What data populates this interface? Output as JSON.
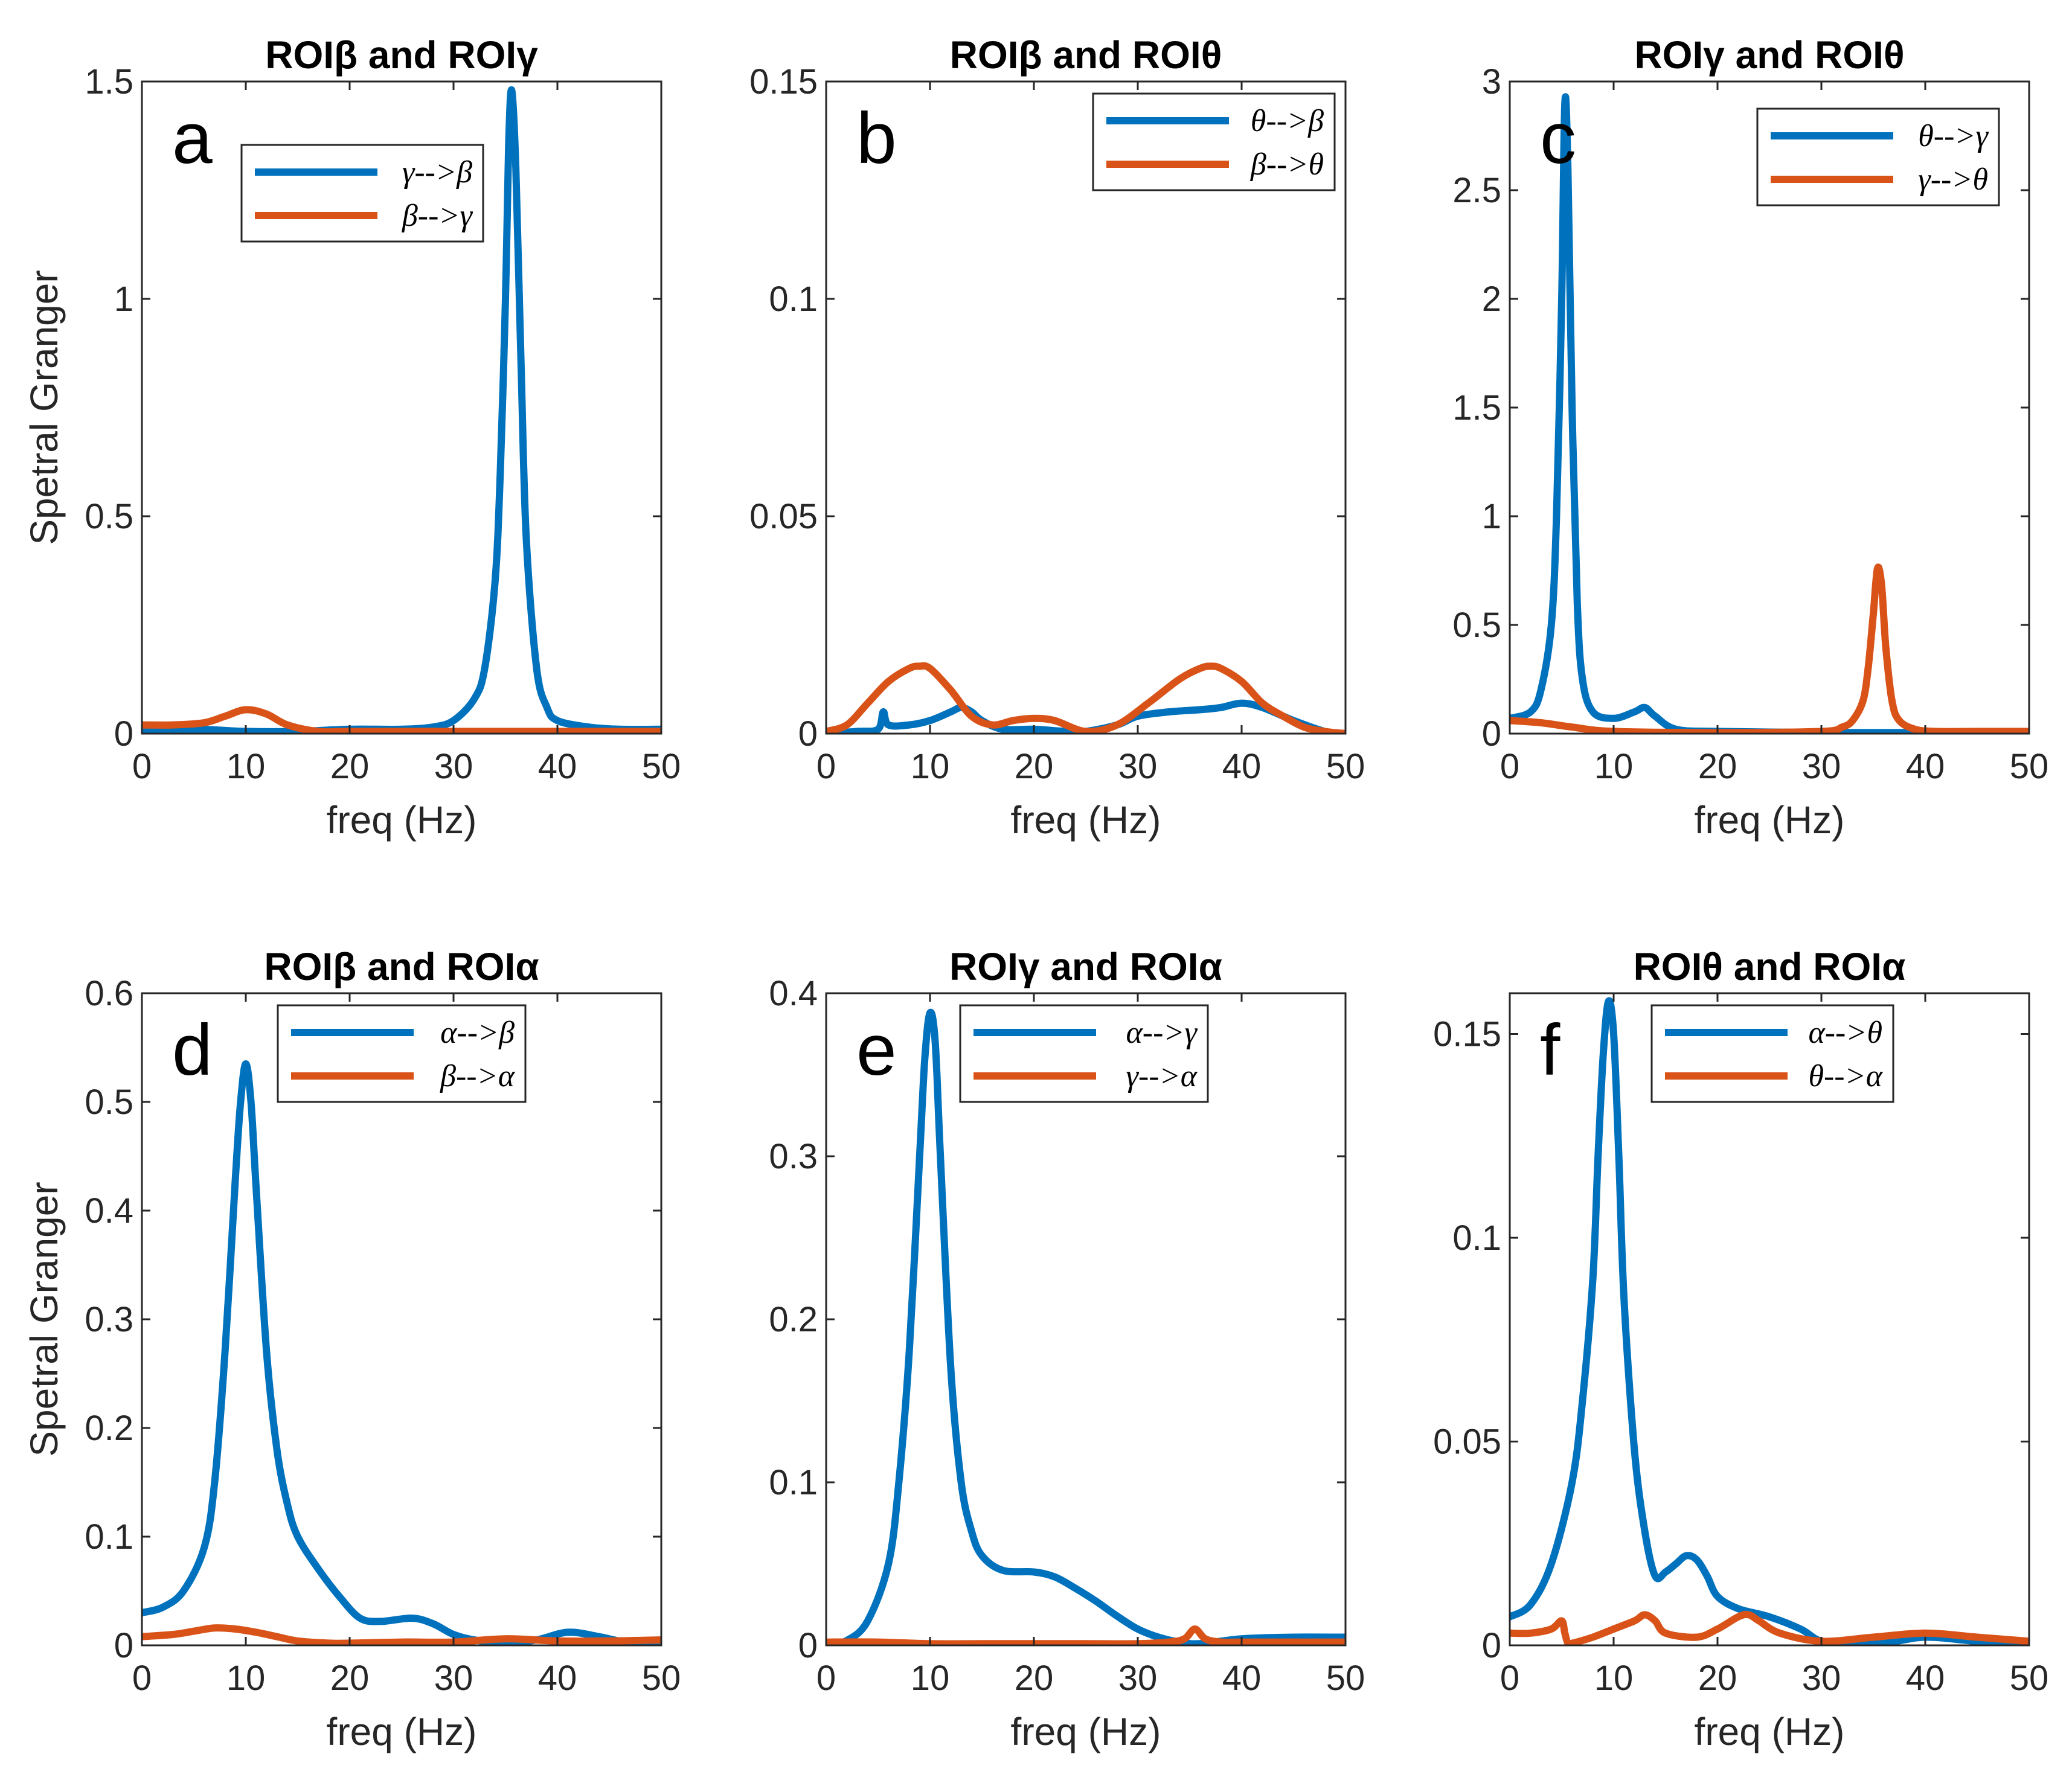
{
  "colors": {
    "blue": "#0072BD",
    "orange": "#D95319"
  },
  "chart_data": [
    {
      "type": "line",
      "panel": "a",
      "title": "ROIβ and ROIγ",
      "xlabel": "freq (Hz)",
      "ylabel": "Spetral Granger",
      "xlim": [
        0,
        50
      ],
      "ylim": [
        0,
        1.5
      ],
      "xticks": [
        0,
        10,
        20,
        30,
        40,
        50
      ],
      "yticks": [
        0,
        0.5,
        1,
        1.5
      ],
      "ytick_labels": [
        "0",
        "0.5",
        "1",
        "1.5"
      ],
      "legend_position": "top-center",
      "series": [
        {
          "name": "γ-->β",
          "color": "#0072BD",
          "x": [
            0,
            5,
            10,
            15,
            20,
            25,
            28,
            30,
            32,
            33,
            34,
            34.5,
            35,
            35.3,
            35.6,
            36,
            36.5,
            37,
            38,
            39,
            40,
            43,
            46,
            50
          ],
          "y": [
            0.005,
            0.01,
            0.005,
            0.005,
            0.01,
            0.01,
            0.015,
            0.03,
            0.08,
            0.15,
            0.35,
            0.6,
            1.0,
            1.35,
            1.48,
            1.3,
            0.85,
            0.45,
            0.15,
            0.06,
            0.03,
            0.015,
            0.01,
            0.01
          ]
        },
        {
          "name": "β-->γ",
          "color": "#D95319",
          "x": [
            0,
            3,
            6,
            8,
            10,
            12,
            14,
            17,
            20,
            30,
            40,
            50
          ],
          "y": [
            0.02,
            0.02,
            0.025,
            0.04,
            0.055,
            0.045,
            0.02,
            0.005,
            0.005,
            0.005,
            0.005,
            0.005
          ]
        }
      ]
    },
    {
      "type": "line",
      "panel": "b",
      "title": "ROIβ and ROIθ",
      "xlabel": "freq (Hz)",
      "ylabel": "",
      "xlim": [
        0,
        50
      ],
      "ylim": [
        0,
        0.15
      ],
      "xticks": [
        0,
        10,
        20,
        30,
        40,
        50
      ],
      "yticks": [
        0,
        0.05,
        0.1,
        0.15
      ],
      "ytick_labels": [
        "0",
        "0.05",
        "0.1",
        "0.15"
      ],
      "legend_position": "top-right",
      "series": [
        {
          "name": "θ-->β",
          "color": "#0072BD",
          "x": [
            0,
            3,
            5,
            5.5,
            6,
            8,
            10,
            12,
            13,
            14,
            15,
            17,
            20,
            23,
            25,
            28,
            30,
            33,
            36,
            38,
            40,
            42,
            45,
            48,
            50
          ],
          "y": [
            0,
            0.0005,
            0.001,
            0.005,
            0.002,
            0.002,
            0.003,
            0.005,
            0.006,
            0.005,
            0.003,
            0.001,
            0.001,
            0.0005,
            0.0005,
            0.002,
            0.004,
            0.005,
            0.0055,
            0.006,
            0.007,
            0.006,
            0.003,
            0.0005,
            0
          ]
        },
        {
          "name": "β-->θ",
          "color": "#D95319",
          "x": [
            0,
            2,
            4,
            6,
            8,
            9,
            10,
            12,
            14,
            16,
            18,
            20,
            22,
            25,
            28,
            31,
            34,
            36,
            37,
            38,
            40,
            42,
            44,
            46,
            48,
            50
          ],
          "y": [
            0.0005,
            0.002,
            0.007,
            0.012,
            0.015,
            0.0155,
            0.015,
            0.01,
            0.004,
            0.002,
            0.003,
            0.0035,
            0.003,
            0.0005,
            0.002,
            0.007,
            0.0125,
            0.015,
            0.0155,
            0.015,
            0.012,
            0.007,
            0.004,
            0.0015,
            0.0005,
            0
          ]
        }
      ]
    },
    {
      "type": "line",
      "panel": "c",
      "title": "ROIγ and ROIθ",
      "xlabel": "freq (Hz)",
      "ylabel": "",
      "xlim": [
        0,
        50
      ],
      "ylim": [
        0,
        3
      ],
      "xticks": [
        0,
        10,
        20,
        30,
        40,
        50
      ],
      "yticks": [
        0,
        0.5,
        1,
        1.5,
        2,
        2.5,
        3
      ],
      "ytick_labels": [
        "0",
        "0.5",
        "1",
        "1.5",
        "2",
        "2.5",
        "3"
      ],
      "legend_position": "top-right",
      "series": [
        {
          "name": "θ-->γ",
          "color": "#0072BD",
          "x": [
            0,
            2,
            3,
            4,
            4.5,
            5,
            5.3,
            5.6,
            6,
            6.5,
            7,
            8,
            10,
            12,
            13,
            14,
            16,
            20,
            30,
            40,
            50
          ],
          "y": [
            0.07,
            0.1,
            0.2,
            0.5,
            1.0,
            2.0,
            2.9,
            2.6,
            1.5,
            0.6,
            0.25,
            0.1,
            0.07,
            0.1,
            0.12,
            0.08,
            0.02,
            0.01,
            0.005,
            0.005,
            0.005
          ]
        },
        {
          "name": "γ-->θ",
          "color": "#D95319",
          "x": [
            0,
            3,
            6,
            10,
            20,
            30,
            32,
            33,
            34,
            34.5,
            35,
            35.4,
            35.8,
            36.2,
            36.8,
            37.5,
            39,
            41,
            45,
            50
          ],
          "y": [
            0.06,
            0.05,
            0.03,
            0.01,
            0.005,
            0.01,
            0.03,
            0.06,
            0.15,
            0.3,
            0.55,
            0.76,
            0.68,
            0.4,
            0.15,
            0.06,
            0.02,
            0.01,
            0.01,
            0.01
          ]
        }
      ]
    },
    {
      "type": "line",
      "panel": "d",
      "title": "ROIβ and ROIα",
      "xlabel": "freq (Hz)",
      "ylabel": "Spetral Granger",
      "xlim": [
        0,
        50
      ],
      "ylim": [
        0,
        0.6
      ],
      "xticks": [
        0,
        10,
        20,
        30,
        40,
        50
      ],
      "yticks": [
        0,
        0.1,
        0.2,
        0.3,
        0.4,
        0.5,
        0.6
      ],
      "ytick_labels": [
        "0",
        "0.1",
        "0.2",
        "0.3",
        "0.4",
        "0.5",
        "0.6"
      ],
      "legend_position": "top-right",
      "series": [
        {
          "name": "α-->β",
          "color": "#0072BD",
          "x": [
            0,
            2,
            4,
            6,
            7,
            8,
            9,
            9.5,
            10,
            10.5,
            11,
            12,
            13,
            14,
            15,
            17,
            19,
            21,
            23,
            26,
            28,
            30,
            32,
            35,
            38,
            41,
            44,
            47,
            50
          ],
          "y": [
            0.03,
            0.035,
            0.05,
            0.09,
            0.15,
            0.27,
            0.43,
            0.5,
            0.535,
            0.5,
            0.42,
            0.27,
            0.18,
            0.13,
            0.1,
            0.07,
            0.045,
            0.025,
            0.022,
            0.025,
            0.02,
            0.01,
            0.005,
            0.002,
            0.005,
            0.012,
            0.008,
            0.002,
            0.001
          ]
        },
        {
          "name": "β-->α",
          "color": "#D95319",
          "x": [
            0,
            3,
            5,
            7,
            9,
            11,
            13,
            15,
            18,
            20,
            25,
            30,
            35,
            40,
            45,
            50
          ],
          "y": [
            0.008,
            0.01,
            0.013,
            0.016,
            0.015,
            0.012,
            0.008,
            0.004,
            0.002,
            0.002,
            0.003,
            0.003,
            0.006,
            0.004,
            0.004,
            0.005
          ]
        }
      ]
    },
    {
      "type": "line",
      "panel": "e",
      "title": "ROIγ and ROIα",
      "xlabel": "freq (Hz)",
      "ylabel": "",
      "xlim": [
        0,
        50
      ],
      "ylim": [
        0,
        0.4
      ],
      "xticks": [
        0,
        10,
        20,
        30,
        40,
        50
      ],
      "yticks": [
        0,
        0.1,
        0.2,
        0.3,
        0.4
      ],
      "ytick_labels": [
        "0",
        "0.1",
        "0.2",
        "0.3",
        "0.4"
      ],
      "legend_position": "top-right",
      "series": [
        {
          "name": "α-->γ",
          "color": "#0072BD",
          "x": [
            0,
            2,
            4,
            6,
            7,
            8,
            9,
            9.5,
            10,
            10.5,
            11,
            12,
            13,
            14,
            15,
            17,
            20,
            22,
            24,
            26,
            28,
            30,
            32,
            34,
            36,
            40,
            45,
            50
          ],
          "y": [
            0,
            0.003,
            0.015,
            0.05,
            0.1,
            0.18,
            0.3,
            0.36,
            0.388,
            0.37,
            0.3,
            0.17,
            0.1,
            0.07,
            0.055,
            0.046,
            0.045,
            0.042,
            0.035,
            0.027,
            0.018,
            0.01,
            0.005,
            0.002,
            0.001,
            0.004,
            0.005,
            0.005
          ]
        },
        {
          "name": "γ-->α",
          "color": "#D95319",
          "x": [
            0,
            5,
            10,
            15,
            20,
            25,
            30,
            33,
            34.5,
            35.5,
            36.5,
            38,
            40,
            45,
            50
          ],
          "y": [
            0.002,
            0.002,
            0.001,
            0.001,
            0.001,
            0.001,
            0.001,
            0.002,
            0.004,
            0.01,
            0.004,
            0.002,
            0.002,
            0.002,
            0.002
          ]
        }
      ]
    },
    {
      "type": "line",
      "panel": "f",
      "title": "ROIθ and ROIα",
      "xlabel": "freq (Hz)",
      "ylabel": "",
      "xlim": [
        0,
        50
      ],
      "ylim": [
        0,
        0.16
      ],
      "xticks": [
        0,
        10,
        20,
        30,
        40,
        50
      ],
      "yticks": [
        0,
        0.05,
        0.1,
        0.15
      ],
      "ytick_labels": [
        "0",
        "0.05",
        "0.1",
        "0.15"
      ],
      "legend_position": "top-right",
      "series": [
        {
          "name": "α-->θ",
          "color": "#0072BD",
          "x": [
            0,
            2,
            4,
            6,
            7,
            8,
            8.5,
            9,
            9.5,
            10,
            10.5,
            11,
            12,
            13,
            14,
            15,
            16,
            17,
            18,
            19,
            20,
            22,
            25,
            28,
            30,
            33,
            36,
            40,
            45,
            50
          ],
          "y": [
            0.007,
            0.01,
            0.02,
            0.04,
            0.06,
            0.09,
            0.12,
            0.145,
            0.158,
            0.15,
            0.12,
            0.085,
            0.048,
            0.028,
            0.017,
            0.018,
            0.02,
            0.022,
            0.021,
            0.017,
            0.012,
            0.009,
            0.007,
            0.004,
            0.001,
            0.0005,
            0.0005,
            0.002,
            0.001,
            0.0005
          ]
        },
        {
          "name": "θ-->α",
          "color": "#D95319",
          "x": [
            0,
            2,
            4,
            5,
            5.3,
            5.6,
            6,
            8,
            10,
            12,
            13,
            14,
            15,
            18,
            20,
            22,
            23,
            24,
            26,
            30,
            35,
            40,
            45,
            50
          ],
          "y": [
            0.003,
            0.003,
            0.004,
            0.006,
            0.003,
            0.0005,
            0.0005,
            0.002,
            0.004,
            0.006,
            0.0075,
            0.006,
            0.003,
            0.002,
            0.004,
            0.007,
            0.0075,
            0.006,
            0.003,
            0.001,
            0.002,
            0.003,
            0.002,
            0.001
          ]
        }
      ]
    }
  ]
}
